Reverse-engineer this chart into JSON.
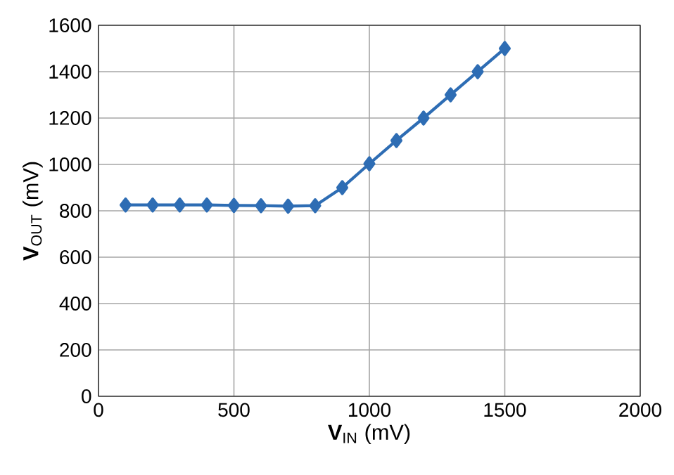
{
  "chart_data": {
    "type": "line",
    "xlabel": "**V**$_{IN}$ (mV)",
    "ylabel": "**V**$_{OUT}$ (mV)",
    "x": [
      100,
      200,
      300,
      400,
      500,
      600,
      700,
      800,
      900,
      1000,
      1100,
      1200,
      1300,
      1400,
      1500
    ],
    "series": [
      {
        "color": "#2e6db4",
        "values": [
          825,
          825,
          825,
          825,
          823,
          822,
          820,
          822,
          900,
          1003,
          1103,
          1200,
          1300,
          1400,
          1500
        ]
      }
    ],
    "xlim": [
      0,
      2000
    ],
    "xticks": [
      0,
      500,
      1000,
      1500,
      2000
    ],
    "ylim": [
      0,
      1600
    ],
    "yticks": [
      0,
      200,
      400,
      600,
      800,
      1000,
      1200,
      1400,
      1600
    ],
    "grid": true,
    "marker": "diamond",
    "line_style": "solid"
  }
}
